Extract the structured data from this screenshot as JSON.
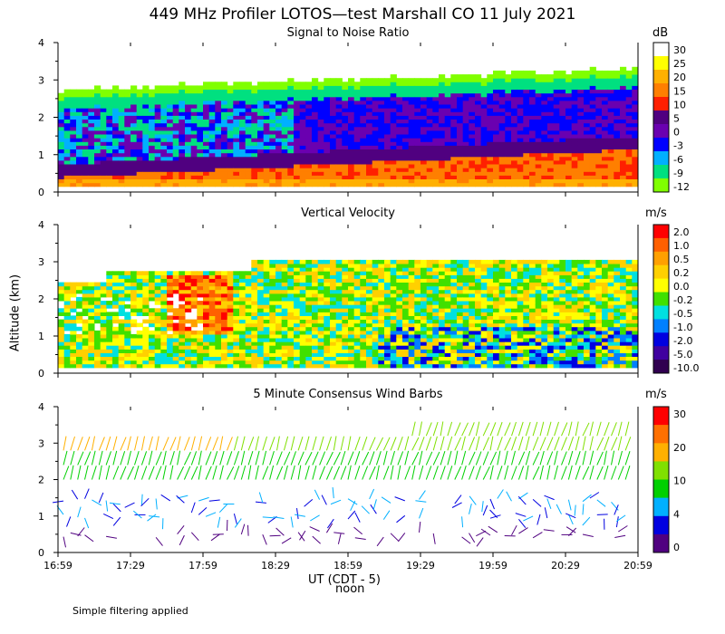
{
  "title": "449 MHz Profiler LOTOS—test Marshall CO 11 July 2021",
  "y_axis_label": "Altitude (km)",
  "x_axis_label": "UT  (CDT - 5)",
  "x_axis_sublabel": "noon",
  "footnote": "Simple filtering applied",
  "chart_data": [
    {
      "type": "heatmap",
      "title": "Signal to Noise Ratio",
      "unit": "dB",
      "ylim": [
        0,
        4
      ],
      "y_ticks": [
        "0",
        "1",
        "2",
        "3",
        "4"
      ],
      "x_ticks": [
        "16:59",
        "17:29",
        "17:59",
        "18:29",
        "18:59",
        "19:29",
        "19:59",
        "20:29",
        "20:59"
      ],
      "colorbar": {
        "labels": [
          "30",
          "25",
          "20",
          "15",
          "10",
          "5",
          "0",
          "-3",
          "-6",
          "-9",
          "-12"
        ],
        "colors": [
          "#ffffff",
          "#ffff00",
          "#ffb000",
          "#ff7f00",
          "#ff2000",
          "#500080",
          "#6a00b0",
          "#0000ff",
          "#00b0ff",
          "#00e080",
          "#80ff00"
        ]
      }
    },
    {
      "type": "heatmap",
      "title": "Vertical Velocity",
      "unit": "m/s",
      "ylim": [
        0,
        4
      ],
      "y_ticks": [
        "0",
        "1",
        "2",
        "3",
        "4"
      ],
      "x_ticks": [
        "16:59",
        "17:29",
        "17:59",
        "18:29",
        "18:59",
        "19:29",
        "19:59",
        "20:29",
        "20:59"
      ],
      "colorbar": {
        "labels": [
          "2.0",
          "1.0",
          "0.5",
          "0.2",
          "0.0",
          "-0.2",
          "-0.5",
          "-1.0",
          "-2.0",
          "-5.0",
          "-10.0"
        ],
        "colors": [
          "#ff0000",
          "#ff6000",
          "#ffa000",
          "#ffd000",
          "#ffff00",
          "#40e000",
          "#00e0e0",
          "#0080ff",
          "#0000e0",
          "#4000a0",
          "#300050"
        ]
      }
    },
    {
      "type": "scatter",
      "title": "5 Minute Consensus Wind Barbs",
      "unit": "m/s",
      "ylim": [
        0,
        4
      ],
      "y_ticks": [
        "0",
        "1",
        "2",
        "3",
        "4"
      ],
      "x_ticks": [
        "16:59",
        "17:29",
        "17:59",
        "18:29",
        "18:59",
        "19:29",
        "19:59",
        "20:29",
        "20:59"
      ],
      "colorbar": {
        "labels": [
          "30",
          "20",
          "10",
          "4",
          "0"
        ],
        "colors": [
          "#ff0000",
          "#ff7000",
          "#ffb000",
          "#80e000",
          "#00d000",
          "#00b0ff",
          "#0000e0",
          "#500080"
        ]
      }
    }
  ]
}
